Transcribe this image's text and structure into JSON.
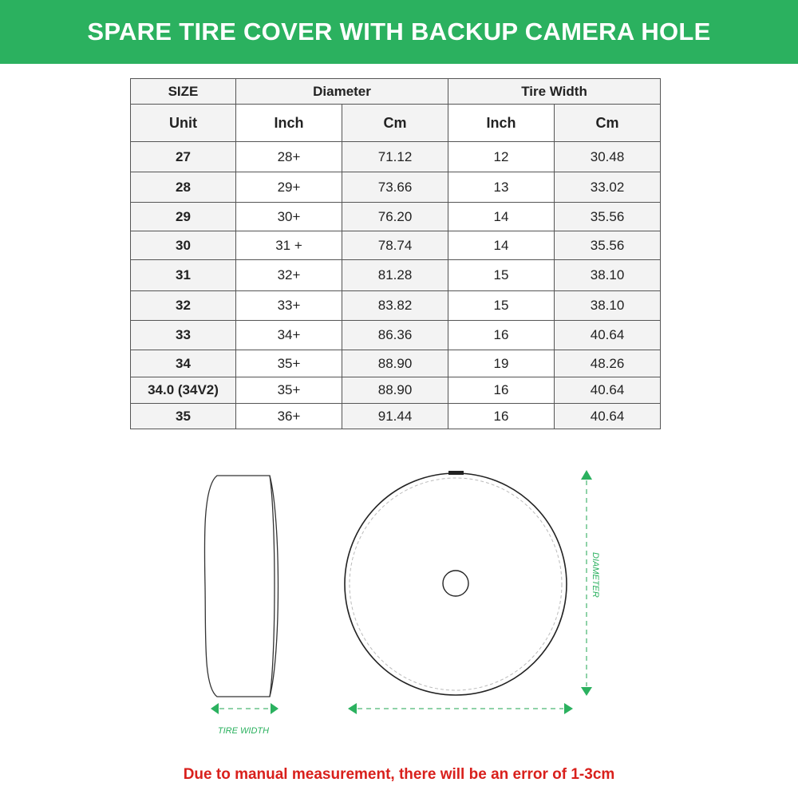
{
  "title": "SPARE TIRE COVER WITH BACKUP CAMERA HOLE",
  "table": {
    "group_headers": [
      "SIZE",
      "Diameter",
      "Tire Width"
    ],
    "sub_headers": [
      "Unit",
      "Inch",
      "Cm",
      "Inch",
      "Cm"
    ],
    "rows": [
      [
        "27",
        "28+",
        "71.12",
        "12",
        "30.48"
      ],
      [
        "28",
        "29+",
        "73.66",
        "13",
        "33.02"
      ],
      [
        "29",
        "30+",
        "76.20",
        "14",
        "35.56"
      ],
      [
        "30",
        "31 +",
        "78.74",
        "14",
        "35.56"
      ],
      [
        "31",
        "32+",
        "81.28",
        "15",
        "38.10"
      ],
      [
        "32",
        "33+",
        "83.82",
        "15",
        "38.10"
      ],
      [
        "33",
        "34+",
        "86.36",
        "16",
        "40.64"
      ],
      [
        "34",
        "35+",
        "88.90",
        "19",
        "48.26"
      ],
      [
        "34.0 (34V2)",
        "35+",
        "88.90",
        "16",
        "40.64"
      ],
      [
        "35",
        "36+",
        "91.44",
        "16",
        "40.64"
      ]
    ]
  },
  "diagram": {
    "tire_width_label": "TIRE WIDTH",
    "diameter_label": "DIAMETER",
    "accent_color": "#2bb15f"
  },
  "note": "Due to manual measurement, there will be an error of 1-3cm",
  "colors": {
    "banner": "#2bb15f",
    "note": "#d9201c"
  }
}
